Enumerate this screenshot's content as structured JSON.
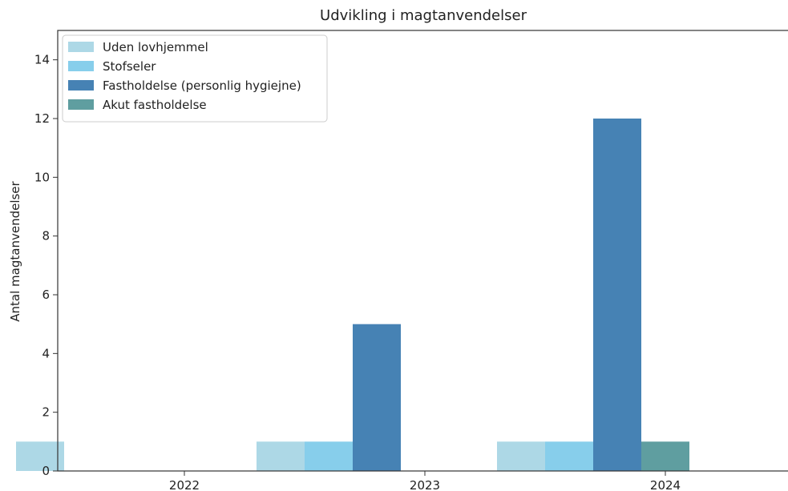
{
  "chart_data": {
    "type": "bar",
    "title": "Udvikling i magtanvendelser",
    "xlabel": "",
    "ylabel": "Antal magtanvendelser",
    "categories": [
      "2022",
      "2023",
      "2024"
    ],
    "ylim": [
      0,
      15
    ],
    "yticks": [
      "0",
      "2",
      "4",
      "6",
      "8",
      "10",
      "12",
      "14"
    ],
    "grid": false,
    "legend_position": "top-left",
    "series": [
      {
        "name": "Uden lovhjemmel",
        "color": "#add8e6",
        "values": [
          1,
          1,
          1
        ]
      },
      {
        "name": "Stofseler",
        "color": "#87ceeb",
        "values": [
          0,
          1,
          1
        ]
      },
      {
        "name": "Fastholdelse (personlig hygiejne)",
        "color": "#4682b4",
        "values": [
          0,
          5,
          12
        ]
      },
      {
        "name": "Akut fastholdelse",
        "color": "#5f9ea0",
        "values": [
          0,
          0,
          1
        ]
      }
    ]
  }
}
